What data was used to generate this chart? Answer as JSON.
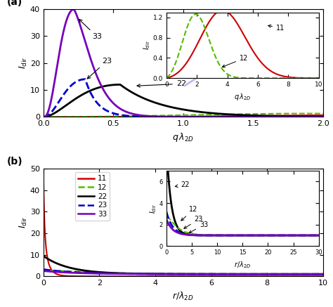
{
  "panel_a": {
    "xlim": [
      0,
      2.0
    ],
    "ylim": [
      0,
      40
    ],
    "yticks": [
      0,
      10,
      20,
      30,
      40
    ],
    "xticks": [
      0.0,
      0.5,
      1.0,
      1.5,
      2.0
    ],
    "lines": {
      "11": {
        "color": "#cc0000",
        "style": "-",
        "lw": 1.5
      },
      "12": {
        "color": "#55bb00",
        "style": "--",
        "lw": 1.5
      },
      "22": {
        "color": "#000000",
        "style": "-",
        "lw": 2.0
      },
      "23": {
        "color": "#0000cc",
        "style": "--",
        "lw": 2.0
      },
      "33": {
        "color": "#7700bb",
        "style": "-",
        "lw": 2.0
      }
    },
    "inset": {
      "xlim": [
        0,
        10
      ],
      "ylim": [
        0,
        1.3
      ],
      "yticks": [
        0.0,
        0.4,
        0.8,
        1.2
      ],
      "xticks": [
        0,
        2,
        4,
        6,
        8,
        10
      ]
    }
  },
  "panel_b": {
    "xlim": [
      0,
      10
    ],
    "ylim": [
      0,
      50
    ],
    "yticks": [
      0,
      10,
      20,
      30,
      40,
      50
    ],
    "xticks": [
      0,
      2,
      4,
      6,
      8,
      10
    ],
    "lines": {
      "11": {
        "color": "#cc0000",
        "style": "-",
        "lw": 1.5
      },
      "12": {
        "color": "#55bb00",
        "style": "--",
        "lw": 1.5
      },
      "22": {
        "color": "#000000",
        "style": "-",
        "lw": 2.0
      },
      "23": {
        "color": "#0000cc",
        "style": "--",
        "lw": 2.0
      },
      "33": {
        "color": "#7700bb",
        "style": "-",
        "lw": 2.0
      }
    },
    "inset": {
      "xlim": [
        0,
        30
      ],
      "ylim": [
        0,
        7
      ],
      "yticks": [
        0,
        2,
        4,
        6
      ],
      "xticks": [
        0,
        5,
        10,
        15,
        20,
        25,
        30
      ]
    }
  }
}
